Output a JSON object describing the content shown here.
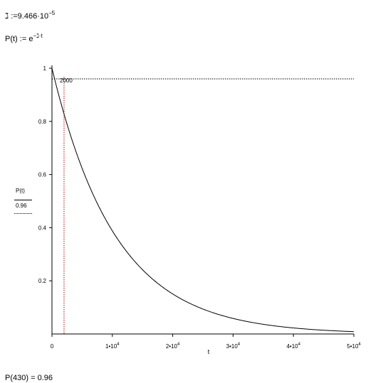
{
  "definitions": {
    "lambda_symbol": "ℷ",
    "lambda_assign": ":=",
    "lambda_mantissa": "9.466·10",
    "lambda_exponent": "−5",
    "p_lhs": "P(t)",
    "p_assign": ":=",
    "p_base": "e",
    "p_exponent": "−ℷ·t"
  },
  "result": {
    "expression": "P(430)",
    "equals": "=",
    "value": "0.96"
  },
  "chart_data": {
    "type": "line",
    "title": "",
    "xlabel": "t",
    "xlim": [
      0,
      50000
    ],
    "ylim": [
      0,
      1
    ],
    "x_ticks": [
      {
        "value": 0,
        "label": "0",
        "exp": ""
      },
      {
        "value": 10000,
        "label": "1•10",
        "exp": "4"
      },
      {
        "value": 20000,
        "label": "2•10",
        "exp": "4"
      },
      {
        "value": 30000,
        "label": "3•10",
        "exp": "4"
      },
      {
        "value": 40000,
        "label": "4•10",
        "exp": "4"
      },
      {
        "value": 50000,
        "label": "5•10",
        "exp": "4"
      }
    ],
    "y_ticks": [
      {
        "value": 0.2,
        "label": "0.2"
      },
      {
        "value": 0.4,
        "label": "0.4"
      },
      {
        "value": 0.6,
        "label": "0.6"
      },
      {
        "value": 0.8,
        "label": "0.8"
      },
      {
        "value": 1,
        "label": "1"
      }
    ],
    "legend": [
      {
        "name": "P(t)",
        "style": "solid",
        "color": "#000000"
      },
      {
        "name": "0.96",
        "style": "dotted",
        "color": "#000000"
      }
    ],
    "series": [
      {
        "name": "P(t)",
        "style": "solid",
        "color": "#000000",
        "lambda": 9.466e-05
      },
      {
        "name": "0.96",
        "style": "dotted",
        "color": "#000000",
        "y": 0.96
      }
    ],
    "marker": {
      "x": 2000,
      "label": "2000",
      "color": "#cc0000",
      "style": "dotted"
    },
    "grid": false
  }
}
